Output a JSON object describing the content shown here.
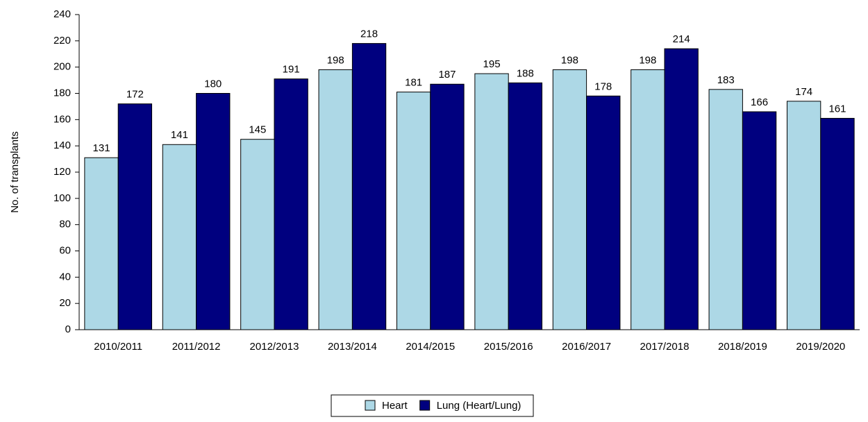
{
  "chart_data": {
    "type": "bar",
    "categories": [
      "2010/2011",
      "2011/2012",
      "2012/2013",
      "2013/2014",
      "2014/2015",
      "2015/2016",
      "2016/2017",
      "2017/2018",
      "2018/2019",
      "2019/2020"
    ],
    "series": [
      {
        "name": "Heart",
        "color": "#add8e6",
        "values": [
          131,
          141,
          145,
          198,
          181,
          195,
          198,
          198,
          183,
          174
        ]
      },
      {
        "name": "Lung (Heart/Lung)",
        "color": "#00007f",
        "values": [
          172,
          180,
          191,
          218,
          187,
          188,
          178,
          214,
          166,
          161
        ]
      }
    ],
    "y_label": "No. of transplants",
    "ylim": [
      0,
      240
    ],
    "yticks": [
      0,
      20,
      40,
      60,
      80,
      100,
      120,
      140,
      160,
      180,
      200,
      220,
      240
    ],
    "grid": false,
    "legend": "bottom"
  }
}
